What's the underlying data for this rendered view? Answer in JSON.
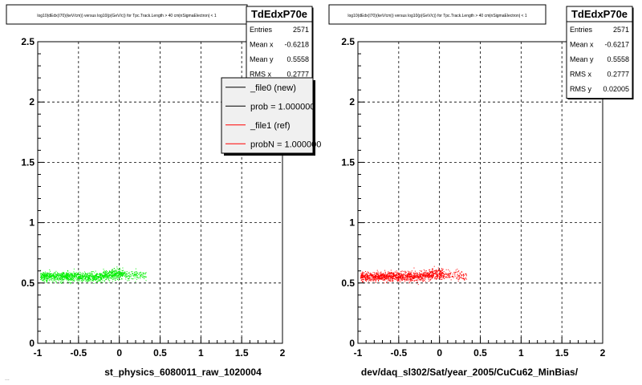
{
  "chart_data": [
    {
      "type": "scatter",
      "title": "log10(dEdx(I70)(keV/cm)) versus log10(p(GeV/c)) for Tpc.Track.Length > 40 cm|nSigmaElectron| < 1",
      "xlabel": "st_physics_6080011_raw_1020004",
      "ylabel": "",
      "xlim": [
        -1,
        2
      ],
      "ylim": [
        0,
        2.5
      ],
      "xticks": [
        "-1",
        "-0.5",
        "0",
        "0.5",
        "1",
        "1.5",
        "2"
      ],
      "yticks": [
        "0",
        "0.5",
        "1",
        "1.5",
        "2",
        "2.5"
      ],
      "grid": true,
      "point_color": "#00ee00",
      "band": {
        "x_start": -0.97,
        "x_end": 0.33,
        "y_center": 0.555,
        "y_spread": 0.035,
        "dense_x_end": 0.05
      },
      "stats": {
        "name": "TdEdxP70e",
        "rows": [
          {
            "label": "Entries",
            "value": "2571"
          },
          {
            "label": "Mean x",
            "value": "-0.6218"
          },
          {
            "label": "Mean y",
            "value": "0.5558"
          },
          {
            "label": "RMS x",
            "value": "0.2777"
          }
        ]
      },
      "legend": {
        "placement": "top-right",
        "entries": [
          {
            "label": "_file0 (new)",
            "color": "#000000"
          },
          {
            "label": "prob = 1.000000",
            "color": "#000000"
          },
          {
            "label": "_file1 (ref)",
            "color": "#ff0000"
          },
          {
            "label": "probN = 1.000000",
            "color": "#ff0000"
          }
        ]
      }
    },
    {
      "type": "scatter",
      "title": "log10(dEdx(I70)(keV/cm)) versus log10(p(GeV/c)) for Tpc.Track.Length > 40 cm|nSigmaElectron| < 1",
      "xlabel": "dev/daq_sl302/Sat/year_2005/CuCu62_MinBias/",
      "ylabel": "",
      "xlim": [
        -1,
        2
      ],
      "ylim": [
        0,
        2.5
      ],
      "xticks": [
        "-1",
        "-0.5",
        "0",
        "0.5",
        "1",
        "1.5",
        "2"
      ],
      "yticks": [
        "0",
        "0.5",
        "1",
        "1.5",
        "2",
        "2.5"
      ],
      "grid": true,
      "point_color": "#ff0000",
      "band": {
        "x_start": -0.97,
        "x_end": 0.33,
        "y_center": 0.555,
        "y_spread": 0.035,
        "dense_x_end": 0.05
      },
      "stats": {
        "name": "TdEdxP70e",
        "rows": [
          {
            "label": "Entries",
            "value": "2571"
          },
          {
            "label": "Mean x",
            "value": "-0.6217"
          },
          {
            "label": "Mean y",
            "value": "0.5558"
          },
          {
            "label": "RMS x",
            "value": "0.2777"
          },
          {
            "label": "RMS y",
            "value": "0.02005"
          }
        ]
      }
    }
  ],
  "footer_text": "..."
}
